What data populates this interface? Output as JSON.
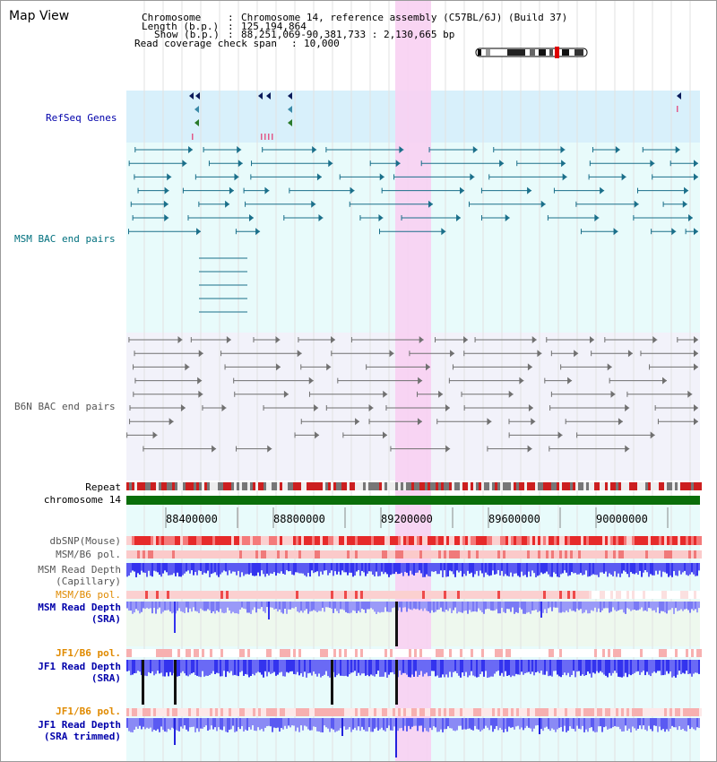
{
  "page": {
    "title": "Map View"
  },
  "header": {
    "chromosome_key": "Chromosome",
    "chromosome_value": "Chromosome 14, reference assembly (C57BL/6J) (Build 37)",
    "length_key": "Length (b.p.)",
    "length_value": "125,194,864",
    "show_key": "Show (b.p.)",
    "show_value": "88,251,069-90,381,733 : 2,130,665 bp",
    "coverage_key": "Read coverage check span",
    "coverage_value": "10,000"
  },
  "tracks": {
    "refseq": "RefSeq Genes",
    "msm_bac": "MSM BAC end pairs",
    "b6n_bac": "B6N BAC end pairs",
    "repeat": "Repeat",
    "chromosome": "chromosome 14",
    "dbsnp": "dbSNP(Mouse)",
    "msm_b6_pol_1": "MSM/B6 pol.",
    "msm_depth_cap_1": "MSM Read Depth",
    "msm_depth_cap_2": "(Capillary)",
    "msm_b6_pol_2": "MSM/B6 pol.",
    "msm_depth_sra_1": "MSM Read Depth",
    "msm_depth_sra_2": "(SRA)",
    "jf1_b6_pol_1": "JF1/B6 pol.",
    "jf1_depth_sra_1": "JF1 Read Depth",
    "jf1_depth_sra_2": "(SRA)",
    "jf1_b6_pol_2": "JF1/B6 pol.",
    "jf1_depth_trim_1": "JF1 Read Depth",
    "jf1_depth_trim_2": "(SRA trimmed)"
  },
  "axis": {
    "ticks": [
      "88400000",
      "88800000",
      "89200000",
      "89600000",
      "90000000"
    ]
  },
  "colors": {
    "refseq_bg": "#d8f0fb",
    "msm_bg": "#e8fbfb",
    "b6n_bg": "#f2f2fa",
    "highlight": "#f8d0f2",
    "msm_feature": "#1a6f8a",
    "b6n_feature": "#707070",
    "chromosome_bar": "#0a6e0a",
    "repeat_red": "#cc1f1f",
    "depth_blue": "#3333ee",
    "label_navy": "#0000aa",
    "label_teal": "#00707e",
    "label_orange": "#e08a00",
    "label_gray": "#555555"
  }
}
